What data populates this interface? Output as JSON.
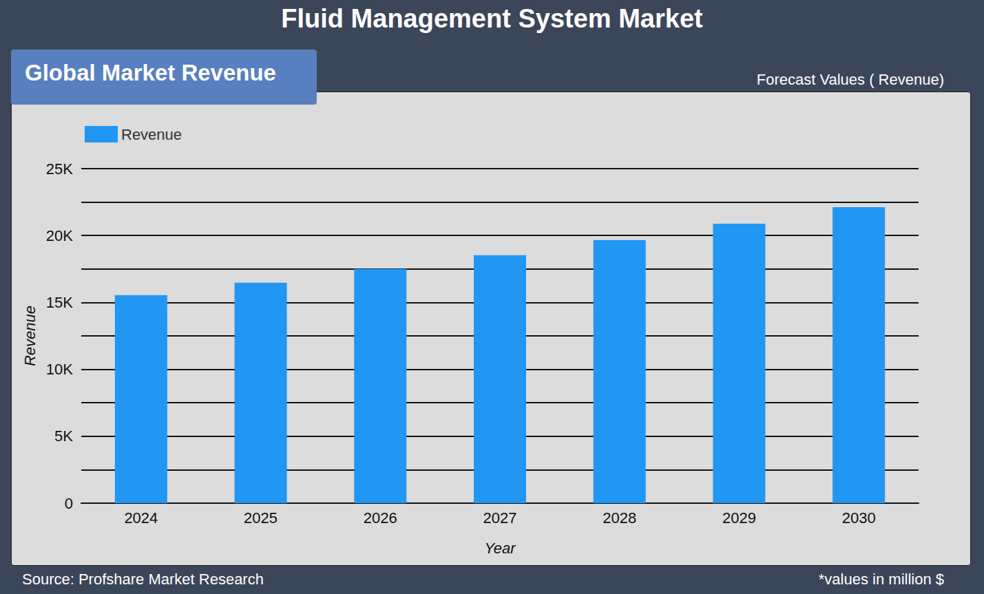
{
  "chart_data": {
    "type": "bar",
    "title": "Fluid Management System Market",
    "panel_title": "Global Market Revenue",
    "subtitle": "Forecast Values ( Revenue)",
    "source": "Source: Profshare Market Research",
    "note": "*values in million $",
    "x_label": "Year",
    "y_label": "Revenue",
    "categories": [
      "2024",
      "2025",
      "2026",
      "2027",
      "2028",
      "2029",
      "2030"
    ],
    "series": [
      {
        "name": "Revenue",
        "color": "#2196f3",
        "values": [
          15550,
          16480,
          17500,
          18530,
          19660,
          20890,
          22120
        ]
      }
    ],
    "ylim": [
      0,
      25000
    ],
    "yticks": [
      0,
      {
        "value": 5000,
        "label": "5K"
      },
      {
        "value": 10000,
        "label": "10K"
      },
      {
        "value": 15000,
        "label": "15K"
      },
      {
        "value": 20000,
        "label": "20K"
      },
      {
        "value": 25000,
        "label": "25K"
      }
    ],
    "grid": true,
    "legend": "upper left"
  }
}
